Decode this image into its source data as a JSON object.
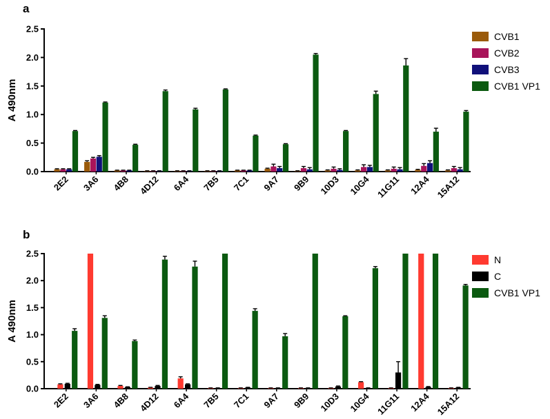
{
  "chart_data": [
    {
      "type": "bar",
      "panel_label": "a",
      "ylabel": "A 490nm",
      "ylim": [
        0,
        2.5
      ],
      "yticks": [
        "0.0",
        "0.5",
        "1.0",
        "1.5",
        "2.0",
        "2.5"
      ],
      "legend_position": "right",
      "categories": [
        "2E2",
        "3A6",
        "4B8",
        "4D12",
        "6A4",
        "7B5",
        "7C1",
        "9A7",
        "9B9",
        "10D3",
        "10G4",
        "11G11",
        "12A4",
        "15A12"
      ],
      "series": [
        {
          "name": "CVB1",
          "color": "#9a5a0a",
          "values": [
            0.04,
            0.17,
            0.02,
            0.01,
            0.01,
            0.01,
            0.02,
            0.05,
            0.01,
            0.02,
            0.02,
            0.02,
            0.03,
            0.02
          ],
          "errors": [
            0.01,
            0.02,
            0.005,
            0.005,
            0.005,
            0.005,
            0.005,
            0.01,
            0.005,
            0.01,
            0.01,
            0.01,
            0.01,
            0.01
          ]
        },
        {
          "name": "CVB2",
          "color": "#a8145a",
          "values": [
            0.04,
            0.23,
            0.02,
            0.01,
            0.01,
            0.01,
            0.02,
            0.09,
            0.06,
            0.05,
            0.08,
            0.05,
            0.1,
            0.06
          ],
          "errors": [
            0.01,
            0.02,
            0.005,
            0.005,
            0.005,
            0.005,
            0.005,
            0.04,
            0.03,
            0.03,
            0.04,
            0.03,
            0.04,
            0.03
          ]
        },
        {
          "name": "CVB3",
          "color": "#10107a",
          "values": [
            0.04,
            0.26,
            0.02,
            0.01,
            0.01,
            0.01,
            0.02,
            0.06,
            0.04,
            0.03,
            0.08,
            0.04,
            0.15,
            0.04
          ],
          "errors": [
            0.01,
            0.02,
            0.005,
            0.005,
            0.005,
            0.005,
            0.005,
            0.03,
            0.03,
            0.02,
            0.03,
            0.03,
            0.04,
            0.03
          ]
        },
        {
          "name": "CVB1 VP1",
          "color": "#0b5a10",
          "values": [
            0.71,
            1.21,
            0.47,
            1.41,
            1.09,
            1.44,
            0.63,
            0.48,
            2.05,
            0.71,
            1.36,
            1.86,
            0.7,
            1.05
          ],
          "errors": [
            0.01,
            0.01,
            0.01,
            0.02,
            0.02,
            0.01,
            0.01,
            0.01,
            0.02,
            0.01,
            0.05,
            0.12,
            0.06,
            0.02
          ]
        }
      ]
    },
    {
      "type": "bar",
      "panel_label": "b",
      "ylabel": "A 490nm",
      "ylim": [
        0,
        2.5
      ],
      "yticks": [
        "0.0",
        "0.5",
        "1.0",
        "1.5",
        "2.0",
        "2.5"
      ],
      "legend_position": "right",
      "categories": [
        "2E2",
        "3A6",
        "4B8",
        "4D12",
        "6A4",
        "7B5",
        "7C1",
        "9A7",
        "9B9",
        "10D3",
        "10G4",
        "11G11",
        "12A4",
        "15A12"
      ],
      "series": [
        {
          "name": "N",
          "color": "#ff3a30",
          "values": [
            0.08,
            2.5,
            0.05,
            0.02,
            0.19,
            0.01,
            0.01,
            0.01,
            0.01,
            0.01,
            0.12,
            0.01,
            2.5,
            0.01
          ],
          "errors": [
            0.01,
            0,
            0.01,
            0.005,
            0.03,
            0.005,
            0.005,
            0.005,
            0.005,
            0.005,
            0.01,
            0.005,
            0,
            0.005
          ]
        },
        {
          "name": "C",
          "color": "#000000",
          "values": [
            0.09,
            0.07,
            0.03,
            0.05,
            0.08,
            0.01,
            0.02,
            0.01,
            0.01,
            0.04,
            0.01,
            0.3,
            0.03,
            0.02
          ],
          "errors": [
            0.01,
            0.01,
            0.005,
            0.01,
            0.01,
            0.005,
            0.005,
            0.005,
            0.005,
            0.01,
            0.005,
            0.2,
            0.01,
            0.005
          ]
        },
        {
          "name": "CVB1 VP1",
          "color": "#0b5a10",
          "values": [
            1.07,
            1.31,
            0.88,
            2.39,
            2.26,
            2.5,
            1.44,
            0.97,
            2.5,
            1.34,
            2.23,
            2.5,
            2.5,
            1.91
          ],
          "errors": [
            0.04,
            0.04,
            0.02,
            0.06,
            0.1,
            0,
            0.04,
            0.05,
            0,
            0.01,
            0.03,
            0,
            0,
            0.02
          ]
        }
      ]
    }
  ]
}
